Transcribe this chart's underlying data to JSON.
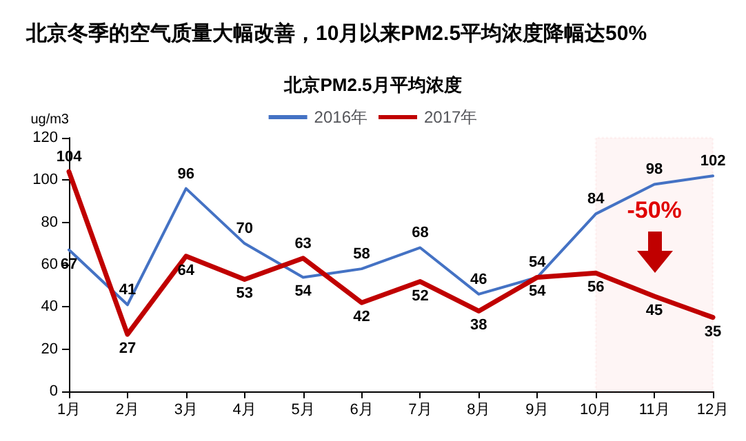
{
  "chart_data": {
    "type": "line",
    "title": "北京冬季的空气质量大幅改善，10月以来PM2.5平均浓度降幅达50%",
    "subtitle": "北京PM2.5月平均浓度",
    "ylabel": "ug/m3",
    "categories": [
      "1月",
      "2月",
      "3月",
      "4月",
      "5月",
      "6月",
      "7月",
      "8月",
      "9月",
      "10月",
      "11月",
      "12月"
    ],
    "series": [
      {
        "name": "2016年",
        "color": "#4472c4",
        "values": [
          67,
          41,
          96,
          70,
          54,
          58,
          68,
          46,
          54,
          84,
          98,
          102
        ]
      },
      {
        "name": "2017年",
        "color": "#c00000",
        "values": [
          104,
          27,
          64,
          53,
          63,
          42,
          52,
          38,
          54,
          56,
          45,
          35
        ]
      }
    ],
    "ylim": [
      0,
      120
    ],
    "yticks": [
      0,
      20,
      40,
      60,
      80,
      100,
      120
    ],
    "grid": false,
    "legend": "top",
    "marker": "none",
    "line_style": "solid",
    "data_labels": true,
    "bands": [
      {
        "axis": "x",
        "from": "10月",
        "to": "12月",
        "color": "#e00000"
      }
    ],
    "annotations": [
      "-50%"
    ]
  }
}
